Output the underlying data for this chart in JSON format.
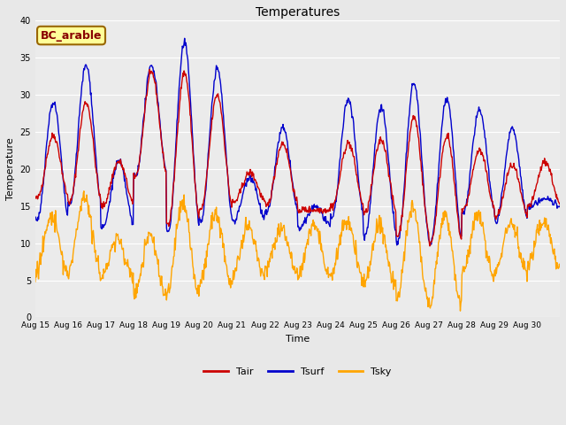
{
  "title": "Temperatures",
  "xlabel": "Time",
  "ylabel": "Temperature",
  "ylim": [
    0,
    40
  ],
  "xlim_days": 16,
  "fig_bg_color": "#e8e8e8",
  "plot_bg_color": "#ebebeb",
  "tair_color": "#cc0000",
  "tsurf_color": "#0000cc",
  "tsky_color": "#ffa500",
  "legend_labels": [
    "Tair",
    "Tsurf",
    "Tsky"
  ],
  "annotation_text": "BC_arable",
  "annotation_facecolor": "#ffff99",
  "annotation_edgecolor": "#996600",
  "annotation_textcolor": "#880000",
  "grid_color": "white",
  "tick_labels": [
    "Aug 15",
    "Aug 16",
    "Aug 17",
    "Aug 18",
    "Aug 19",
    "Aug 20",
    "Aug 21",
    "Aug 22",
    "Aug 23",
    "Aug 24",
    "Aug 25",
    "Aug 26",
    "Aug 27",
    "Aug 28",
    "Aug 29",
    "Aug 30"
  ],
  "n_points": 960,
  "days": 16
}
